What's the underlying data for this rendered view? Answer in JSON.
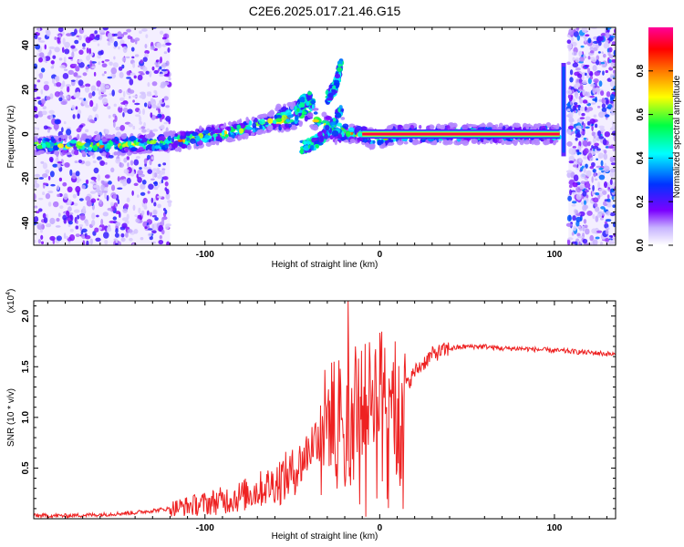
{
  "title": "C2E6.2025.017.21.46.G15",
  "chart_data": [
    {
      "type": "heatmap",
      "xlabel": "Height of straight line (km)",
      "ylabel": "Frequency (Hz)",
      "xlim": [
        -198,
        135
      ],
      "ylim": [
        -50,
        48
      ],
      "xticks": [
        -100,
        0,
        100
      ],
      "xtick_labels": [
        "-100",
        "0",
        "100"
      ],
      "yticks": [
        -40,
        -20,
        0,
        20,
        40
      ],
      "ytick_labels": [
        "-40",
        "-20",
        "0",
        "20",
        "40"
      ],
      "colorbar": {
        "label": "Normalized spectral amplitude",
        "range": [
          0,
          1
        ],
        "ticks": [
          0.0,
          0.2,
          0.4,
          0.6,
          0.8
        ],
        "tick_labels": [
          "0.0",
          "0.2",
          "0.4",
          "0.6",
          "0.8"
        ],
        "colors": [
          "#ffffff",
          "#7b00ff",
          "#0033ff",
          "#00ffff",
          "#00ff44",
          "#ffff00",
          "#ff7700",
          "#ff0000",
          "#ff0099"
        ]
      },
      "ridge": {
        "x": [
          -198,
          -180,
          -160,
          -140,
          -120,
          -110,
          -100,
          -90,
          -80,
          -70,
          -60,
          -50,
          -45,
          -40,
          -35,
          -30,
          -25,
          -20,
          -15,
          -10,
          -5,
          0,
          10,
          20,
          40,
          60,
          80,
          100,
          103
        ],
        "y": [
          -5,
          -5,
          -5,
          -4.5,
          -3.5,
          -2.5,
          -1,
          0,
          2,
          4,
          6,
          8,
          10,
          12,
          4,
          3,
          2,
          1,
          0,
          0,
          -2,
          -2,
          0,
          0,
          0,
          0,
          0,
          0,
          0
        ]
      },
      "branches": [
        {
          "x": [
            -48,
            -45,
            -40,
            -38
          ],
          "y": [
            8,
            14,
            16,
            13
          ]
        },
        {
          "x": [
            -45,
            -40,
            -35,
            -30,
            -25,
            -22
          ],
          "y": [
            -6,
            -5,
            -3,
            1,
            7,
            11
          ]
        },
        {
          "x": [
            -30,
            -25,
            -22
          ],
          "y": [
            16,
            22,
            32
          ]
        }
      ],
      "carrier": {
        "x": [
          -10,
          103
        ],
        "y": 0,
        "level": 0.95
      },
      "noise_regions": [
        [
          -198,
          -120
        ],
        [
          108,
          135
        ]
      ],
      "vertical_spike": {
        "x": 105,
        "y_range": [
          -10,
          32
        ]
      },
      "grid": false
    },
    {
      "type": "line",
      "xlabel": "Height of straight line (km)",
      "ylabel": "SNR (10 * v/v)",
      "multiplier_label": "(x10",
      "multiplier_exp": "4",
      "xlim": [
        -198,
        135
      ],
      "ylim": [
        0,
        2.15
      ],
      "xticks": [
        -100,
        0,
        100
      ],
      "xtick_labels": [
        "-100",
        "0",
        "100"
      ],
      "yticks": [
        0.5,
        1.0,
        1.5,
        2.0
      ],
      "ytick_labels": [
        "0.5",
        "1.0",
        "1.5",
        "2.0"
      ],
      "series": [
        {
          "color": "#ee2222",
          "x": [
            -198,
            -180,
            -160,
            -140,
            -120,
            -100,
            -90,
            -80,
            -70,
            -60,
            -50,
            -45,
            -40,
            -35,
            -30,
            -25,
            -20,
            -15,
            -10,
            -5,
            0,
            5,
            10,
            15,
            20,
            30,
            40,
            50,
            60,
            70,
            80,
            90,
            100,
            110,
            120,
            135
          ],
          "y": [
            0.03,
            0.03,
            0.04,
            0.06,
            0.1,
            0.15,
            0.18,
            0.22,
            0.28,
            0.35,
            0.45,
            0.55,
            0.7,
            0.85,
            1.0,
            1.05,
            1.1,
            1.1,
            1.15,
            1.25,
            1.35,
            1.42,
            1.2,
            1.3,
            1.45,
            1.62,
            1.68,
            1.7,
            1.7,
            1.68,
            1.68,
            1.67,
            1.66,
            1.65,
            1.64,
            1.62
          ]
        }
      ],
      "spikes": [
        {
          "x": -18,
          "y": 2.15
        },
        {
          "x": -14,
          "y": 1.7
        },
        {
          "x": -26,
          "y": 1.55
        },
        {
          "x": 9,
          "y": 1.75
        },
        {
          "x": 10,
          "y": 0.48
        },
        {
          "x": -8,
          "y": 0.02
        }
      ],
      "grid": false
    }
  ]
}
